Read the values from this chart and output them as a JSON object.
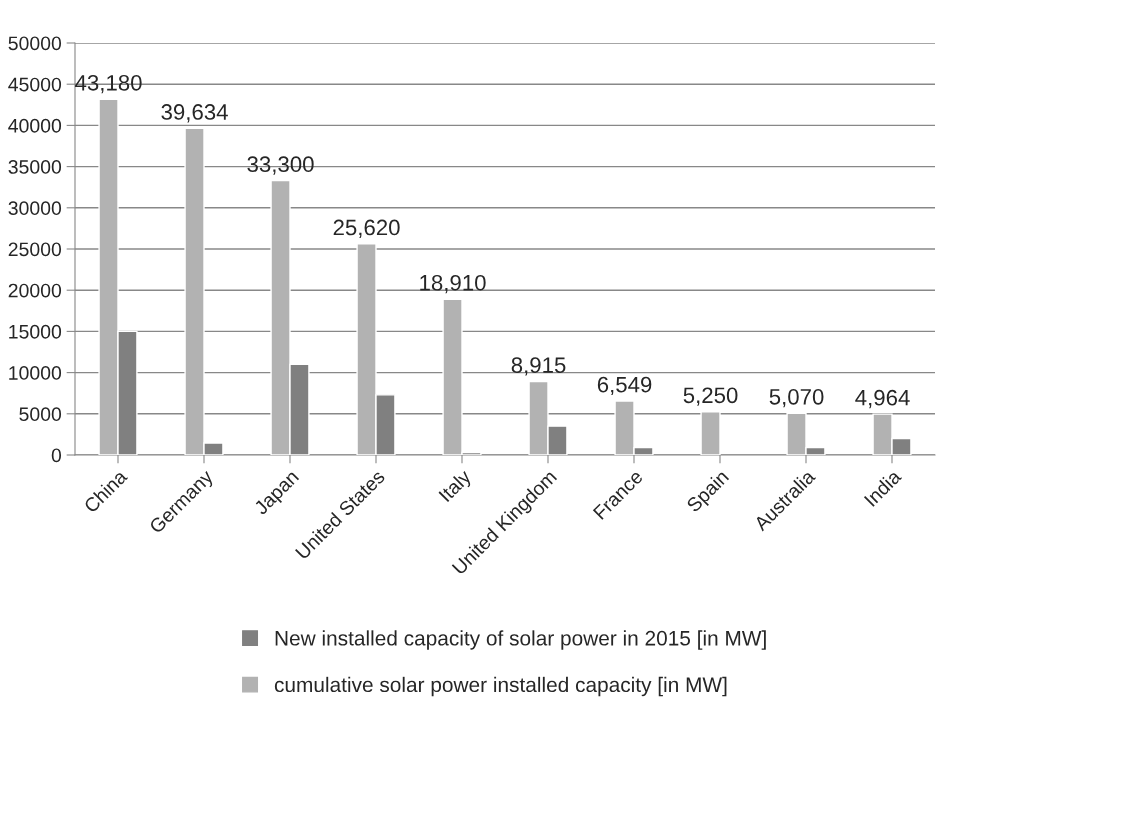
{
  "chart_data": {
    "type": "bar",
    "categories": [
      "China",
      "Germany",
      "Japan",
      "United States",
      "Italy",
      "United Kingdom",
      "France",
      "Spain",
      "Australia",
      "India"
    ],
    "series": [
      {
        "name": "cumulative solar power installed capacity [in MW]",
        "color": "#b2b2b2",
        "values": [
          43180,
          39634,
          33300,
          25620,
          18910,
          8915,
          6549,
          5250,
          5070,
          4964
        ],
        "value_labels": [
          "43,180",
          "39,634",
          "33,300",
          "25,620",
          "18,910",
          "8,915",
          "6,549",
          "5,250",
          "5,070",
          "4,964"
        ]
      },
      {
        "name": "New installed capacity of solar power in 2015 [in MW]",
        "color": "#808080",
        "values": [
          15000,
          1450,
          11000,
          7300,
          300,
          3500,
          900,
          null,
          900,
          2000
        ]
      }
    ],
    "ylim": [
      0,
      50000
    ],
    "yticks": [
      0,
      5000,
      10000,
      15000,
      20000,
      25000,
      30000,
      35000,
      40000,
      45000,
      50000
    ],
    "grid": "y",
    "legend": "bottom"
  }
}
